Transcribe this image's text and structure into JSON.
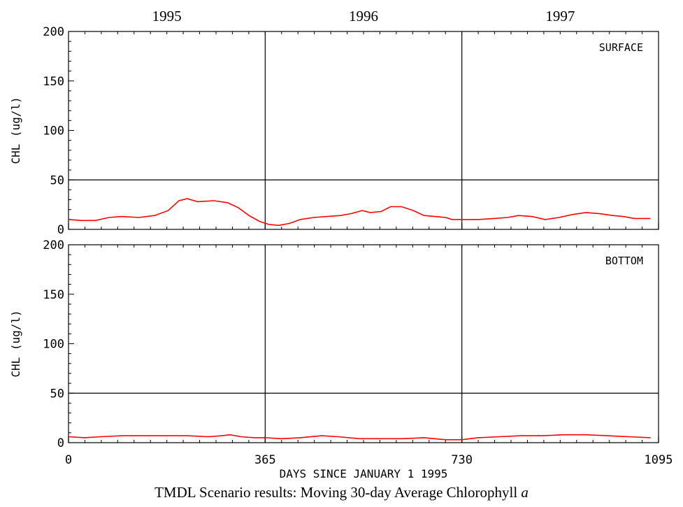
{
  "caption": {
    "text": "TMDL Scenario results: Moving 30-day Average Chlorophyll ",
    "italic": "a"
  },
  "chart_data": {
    "type": "line",
    "xlabel": "DAYS SINCE JANUARY 1 1995",
    "xlim": [
      0,
      1095
    ],
    "x_ticks": [
      0,
      365,
      730,
      1095
    ],
    "x_tick_labels": [
      "0",
      "365",
      "730",
      "1095"
    ],
    "x_vlines": [
      365,
      730
    ],
    "year_labels": [
      {
        "text": "1995",
        "x": 182.5
      },
      {
        "text": "1996",
        "x": 547.5
      },
      {
        "text": "1997",
        "x": 912.5
      }
    ],
    "line_color": "#ff0000",
    "panels": [
      {
        "name": "SURFACE",
        "ylabel": "CHL (ug/l)",
        "ylim": [
          0,
          200
        ],
        "y_ticks": [
          0,
          50,
          100,
          150,
          200
        ],
        "y_tick_labels": [
          "0",
          "50",
          "100",
          "150",
          "200"
        ],
        "hline": 50,
        "series": [
          {
            "x": [
              0,
              25,
              50,
              75,
              100,
              130,
              160,
              185,
              205,
              220,
              240,
              270,
              295,
              315,
              335,
              355,
              372,
              390,
              410,
              430,
              455,
              480,
              505,
              525,
              545,
              560,
              580,
              598,
              618,
              640,
              660,
              680,
              700,
              712,
              730,
              760,
              790,
              815,
              835,
              860,
              885,
              910,
              935,
              960,
              985,
              1010,
              1030,
              1050,
              1080
            ],
            "y": [
              10,
              9,
              9,
              12,
              13,
              12,
              14,
              19,
              29,
              31,
              28,
              29,
              27,
              22,
              14,
              8,
              5,
              4,
              6,
              10,
              12,
              13,
              14,
              16,
              19,
              17,
              18,
              23,
              23,
              19,
              14,
              13,
              12,
              10,
              10,
              10,
              11,
              12,
              14,
              13,
              10,
              12,
              15,
              17,
              16,
              14,
              13,
              11,
              11
            ]
          }
        ]
      },
      {
        "name": "BOTTOM",
        "ylabel": "CHL (ug/l)",
        "ylim": [
          0,
          200
        ],
        "y_ticks": [
          0,
          50,
          100,
          150,
          200
        ],
        "y_tick_labels": [
          "0",
          "50",
          "100",
          "150",
          "200"
        ],
        "hline": 50,
        "series": [
          {
            "x": [
              0,
              30,
              60,
              100,
              140,
              180,
              220,
              260,
              285,
              300,
              320,
              345,
              365,
              395,
              430,
              470,
              500,
              540,
              580,
              620,
              660,
              700,
              730,
              760,
              800,
              840,
              880,
              920,
              960,
              1000,
              1040,
              1080
            ],
            "y": [
              6,
              5,
              6,
              7,
              7,
              7,
              7,
              6,
              7,
              8,
              6,
              5,
              5,
              4,
              5,
              7,
              6,
              4,
              4,
              4,
              5,
              3,
              3,
              5,
              6,
              7,
              7,
              8,
              8,
              7,
              6,
              5
            ]
          }
        ]
      }
    ]
  }
}
